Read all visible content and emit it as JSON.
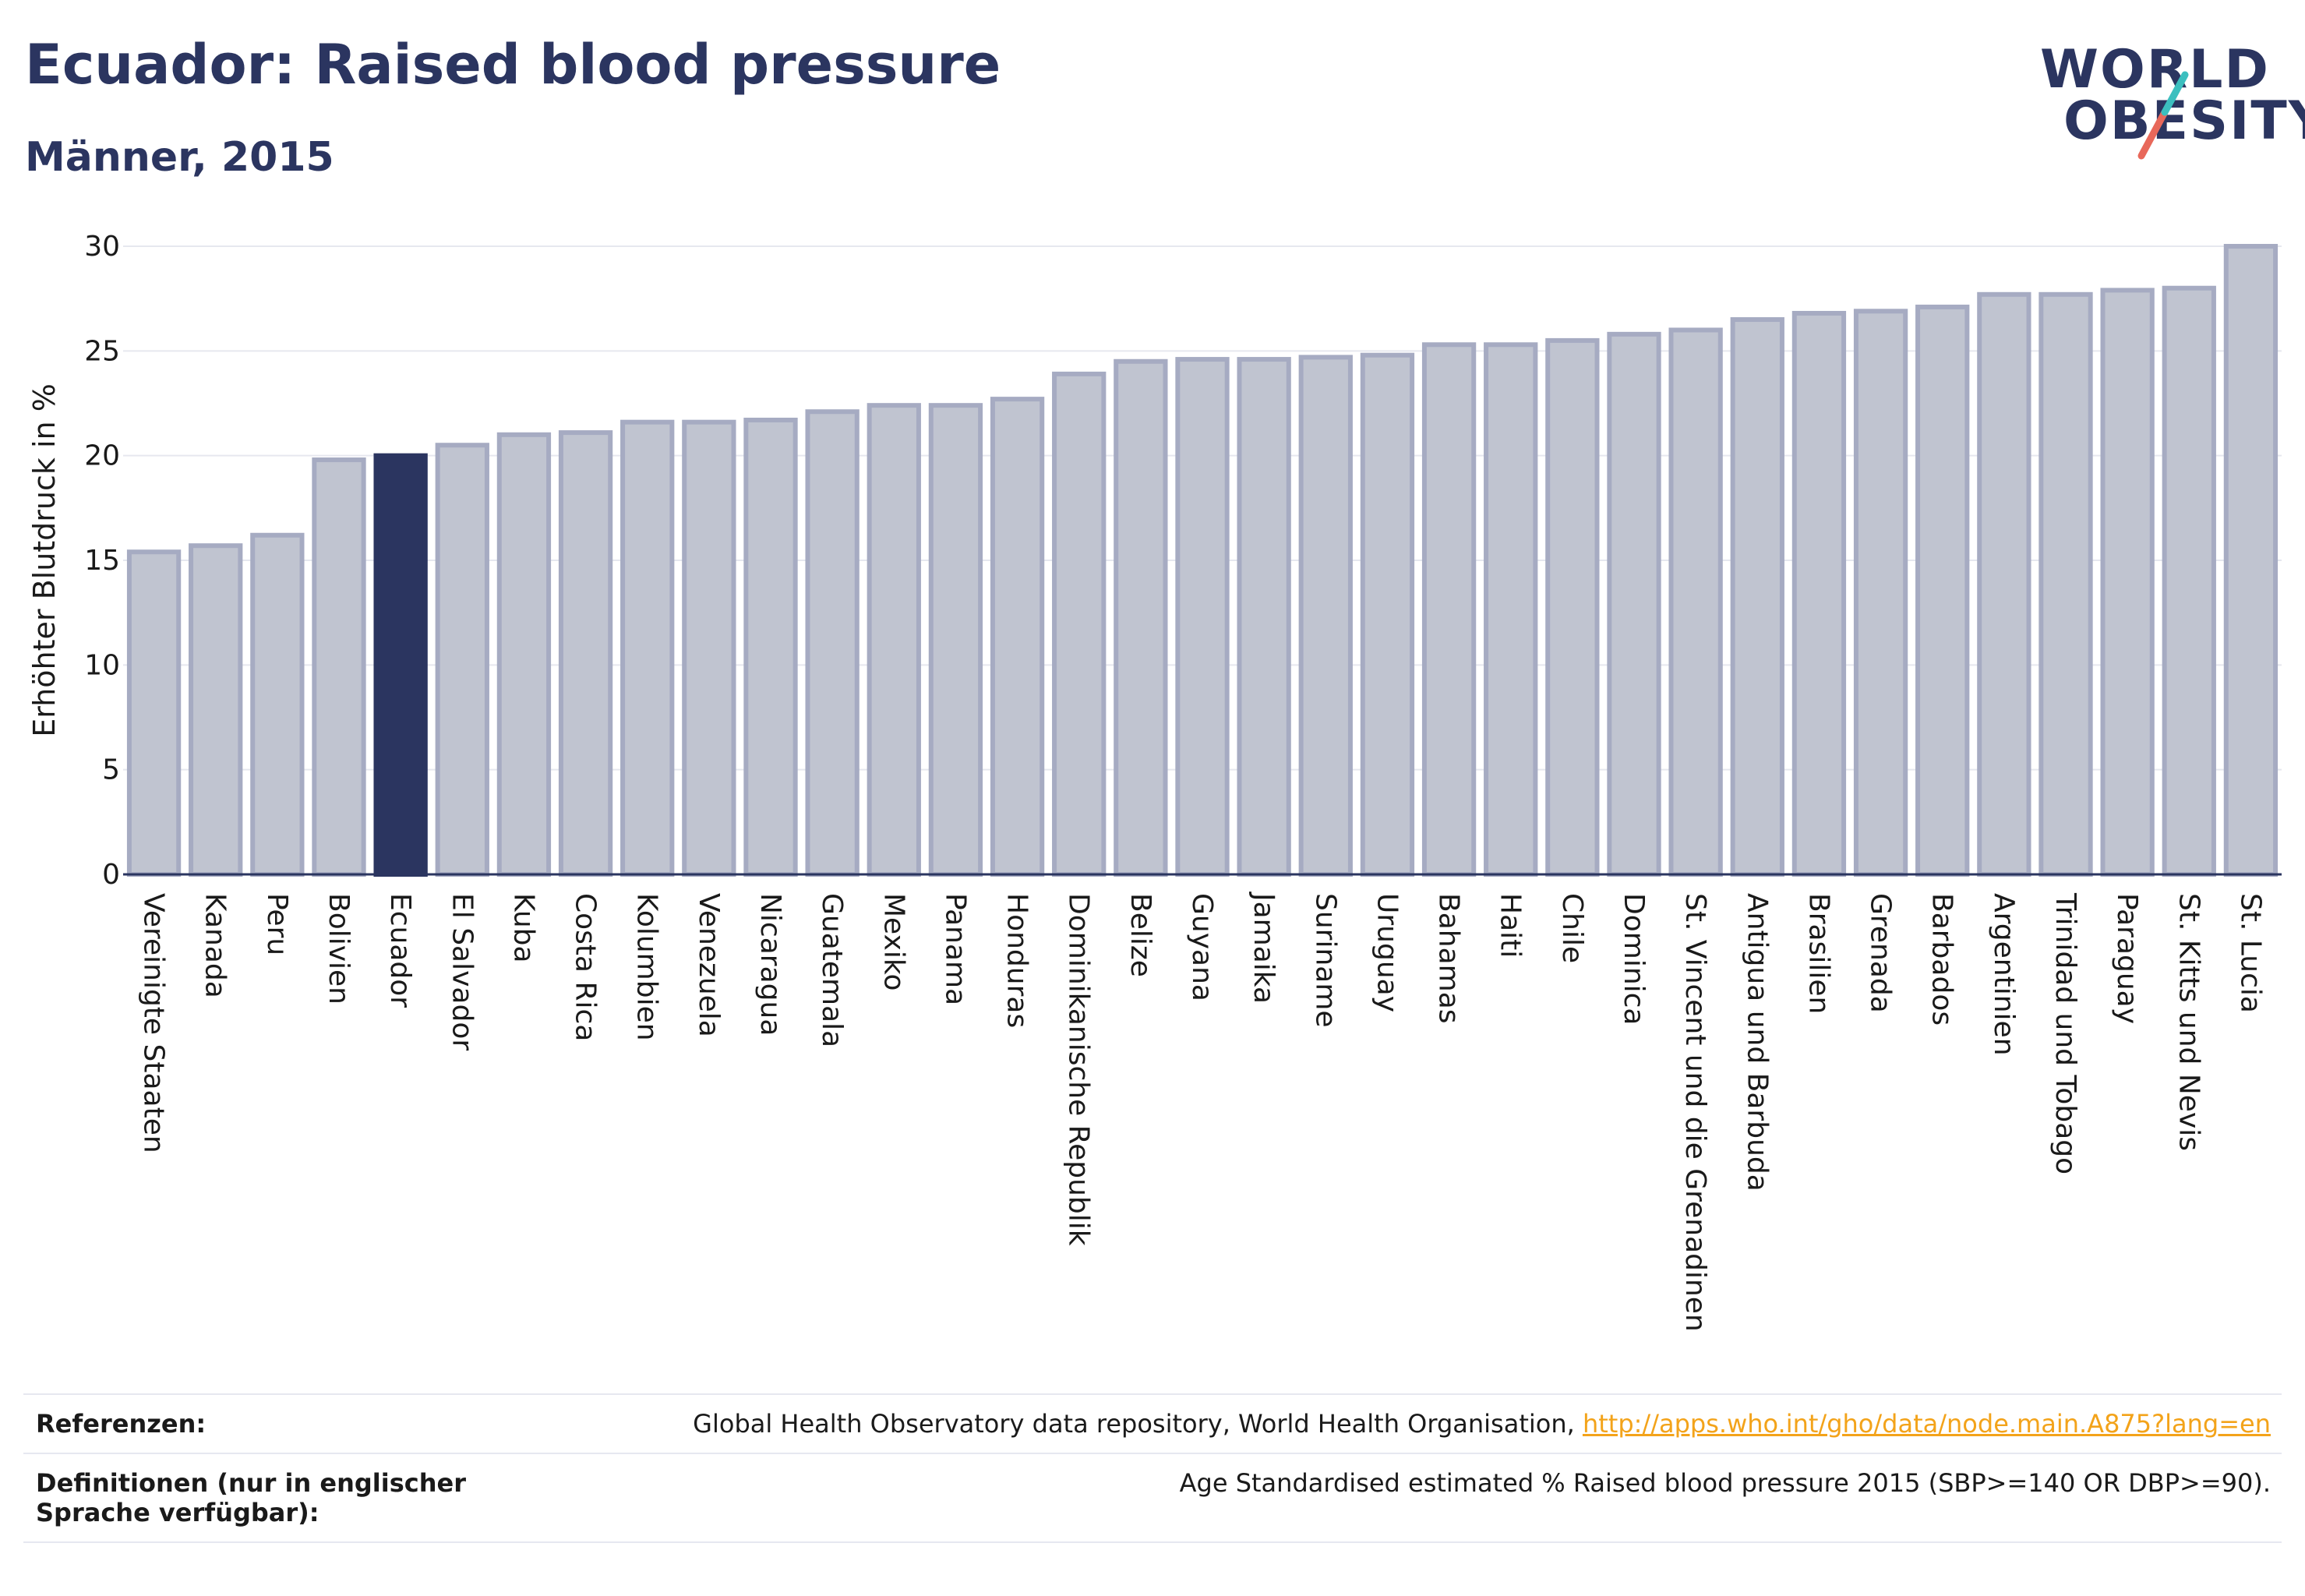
{
  "header": {
    "title": "Ecuador: Raised blood pressure",
    "subtitle": "Männer, 2015"
  },
  "logo": {
    "line1": "WORLD",
    "line2": "OBESITY"
  },
  "colors": {
    "bar": "#c0c4d0",
    "bar_stroke": "#a6abc2",
    "highlight": "#2b3560",
    "grid": "#e6e8ef",
    "text": "#1a1a1a",
    "logo_teal": "#3cbfbf",
    "logo_red": "#e8685a",
    "link": "#f3a31a"
  },
  "chart_data": {
    "type": "bar",
    "ylabel": "Erhöhter Blutdruck in %",
    "ylim": [
      0,
      30
    ],
    "yticks": [
      0,
      5,
      10,
      15,
      20,
      25,
      30
    ],
    "grid": true,
    "highlight": "Ecuador",
    "categories": [
      "Vereinigte Staaten",
      "Kanada",
      "Peru",
      "Bolivien",
      "Ecuador",
      "El Salvador",
      "Kuba",
      "Costa Rica",
      "Kolumbien",
      "Venezuela",
      "Nicaragua",
      "Guatemala",
      "Mexiko",
      "Panama",
      "Honduras",
      "Dominikanische Republik",
      "Belize",
      "Guyana",
      "Jamaika",
      "Suriname",
      "Uruguay",
      "Bahamas",
      "Haiti",
      "Chile",
      "Dominica",
      "St. Vincent und die Grenadinen",
      "Antigua und Barbuda",
      "Brasilien",
      "Grenada",
      "Barbados",
      "Argentinien",
      "Trinidad und Tobago",
      "Paraguay",
      "St. Kitts und Nevis",
      "St. Lucia"
    ],
    "values": [
      15.4,
      15.7,
      16.2,
      19.8,
      20.0,
      20.5,
      21.0,
      21.1,
      21.6,
      21.6,
      21.7,
      22.1,
      22.4,
      22.4,
      22.7,
      23.9,
      24.5,
      24.6,
      24.6,
      24.7,
      24.8,
      25.3,
      25.3,
      25.5,
      25.8,
      26.0,
      26.5,
      26.8,
      26.9,
      27.1,
      27.7,
      27.7,
      27.9,
      28.0,
      30.0
    ]
  },
  "footer": {
    "ref_label": "Referenzen:",
    "ref_text": "Global Health Observatory data repository, World Health Organisation, ",
    "ref_link": "http://apps.who.int/gho/data/node.main.A875?lang=en",
    "def_label": "Definitionen (nur in englischer Sprache verfügbar):",
    "def_text": "Age Standardised estimated % Raised blood pressure 2015 (SBP>=140 OR DBP>=90)."
  }
}
